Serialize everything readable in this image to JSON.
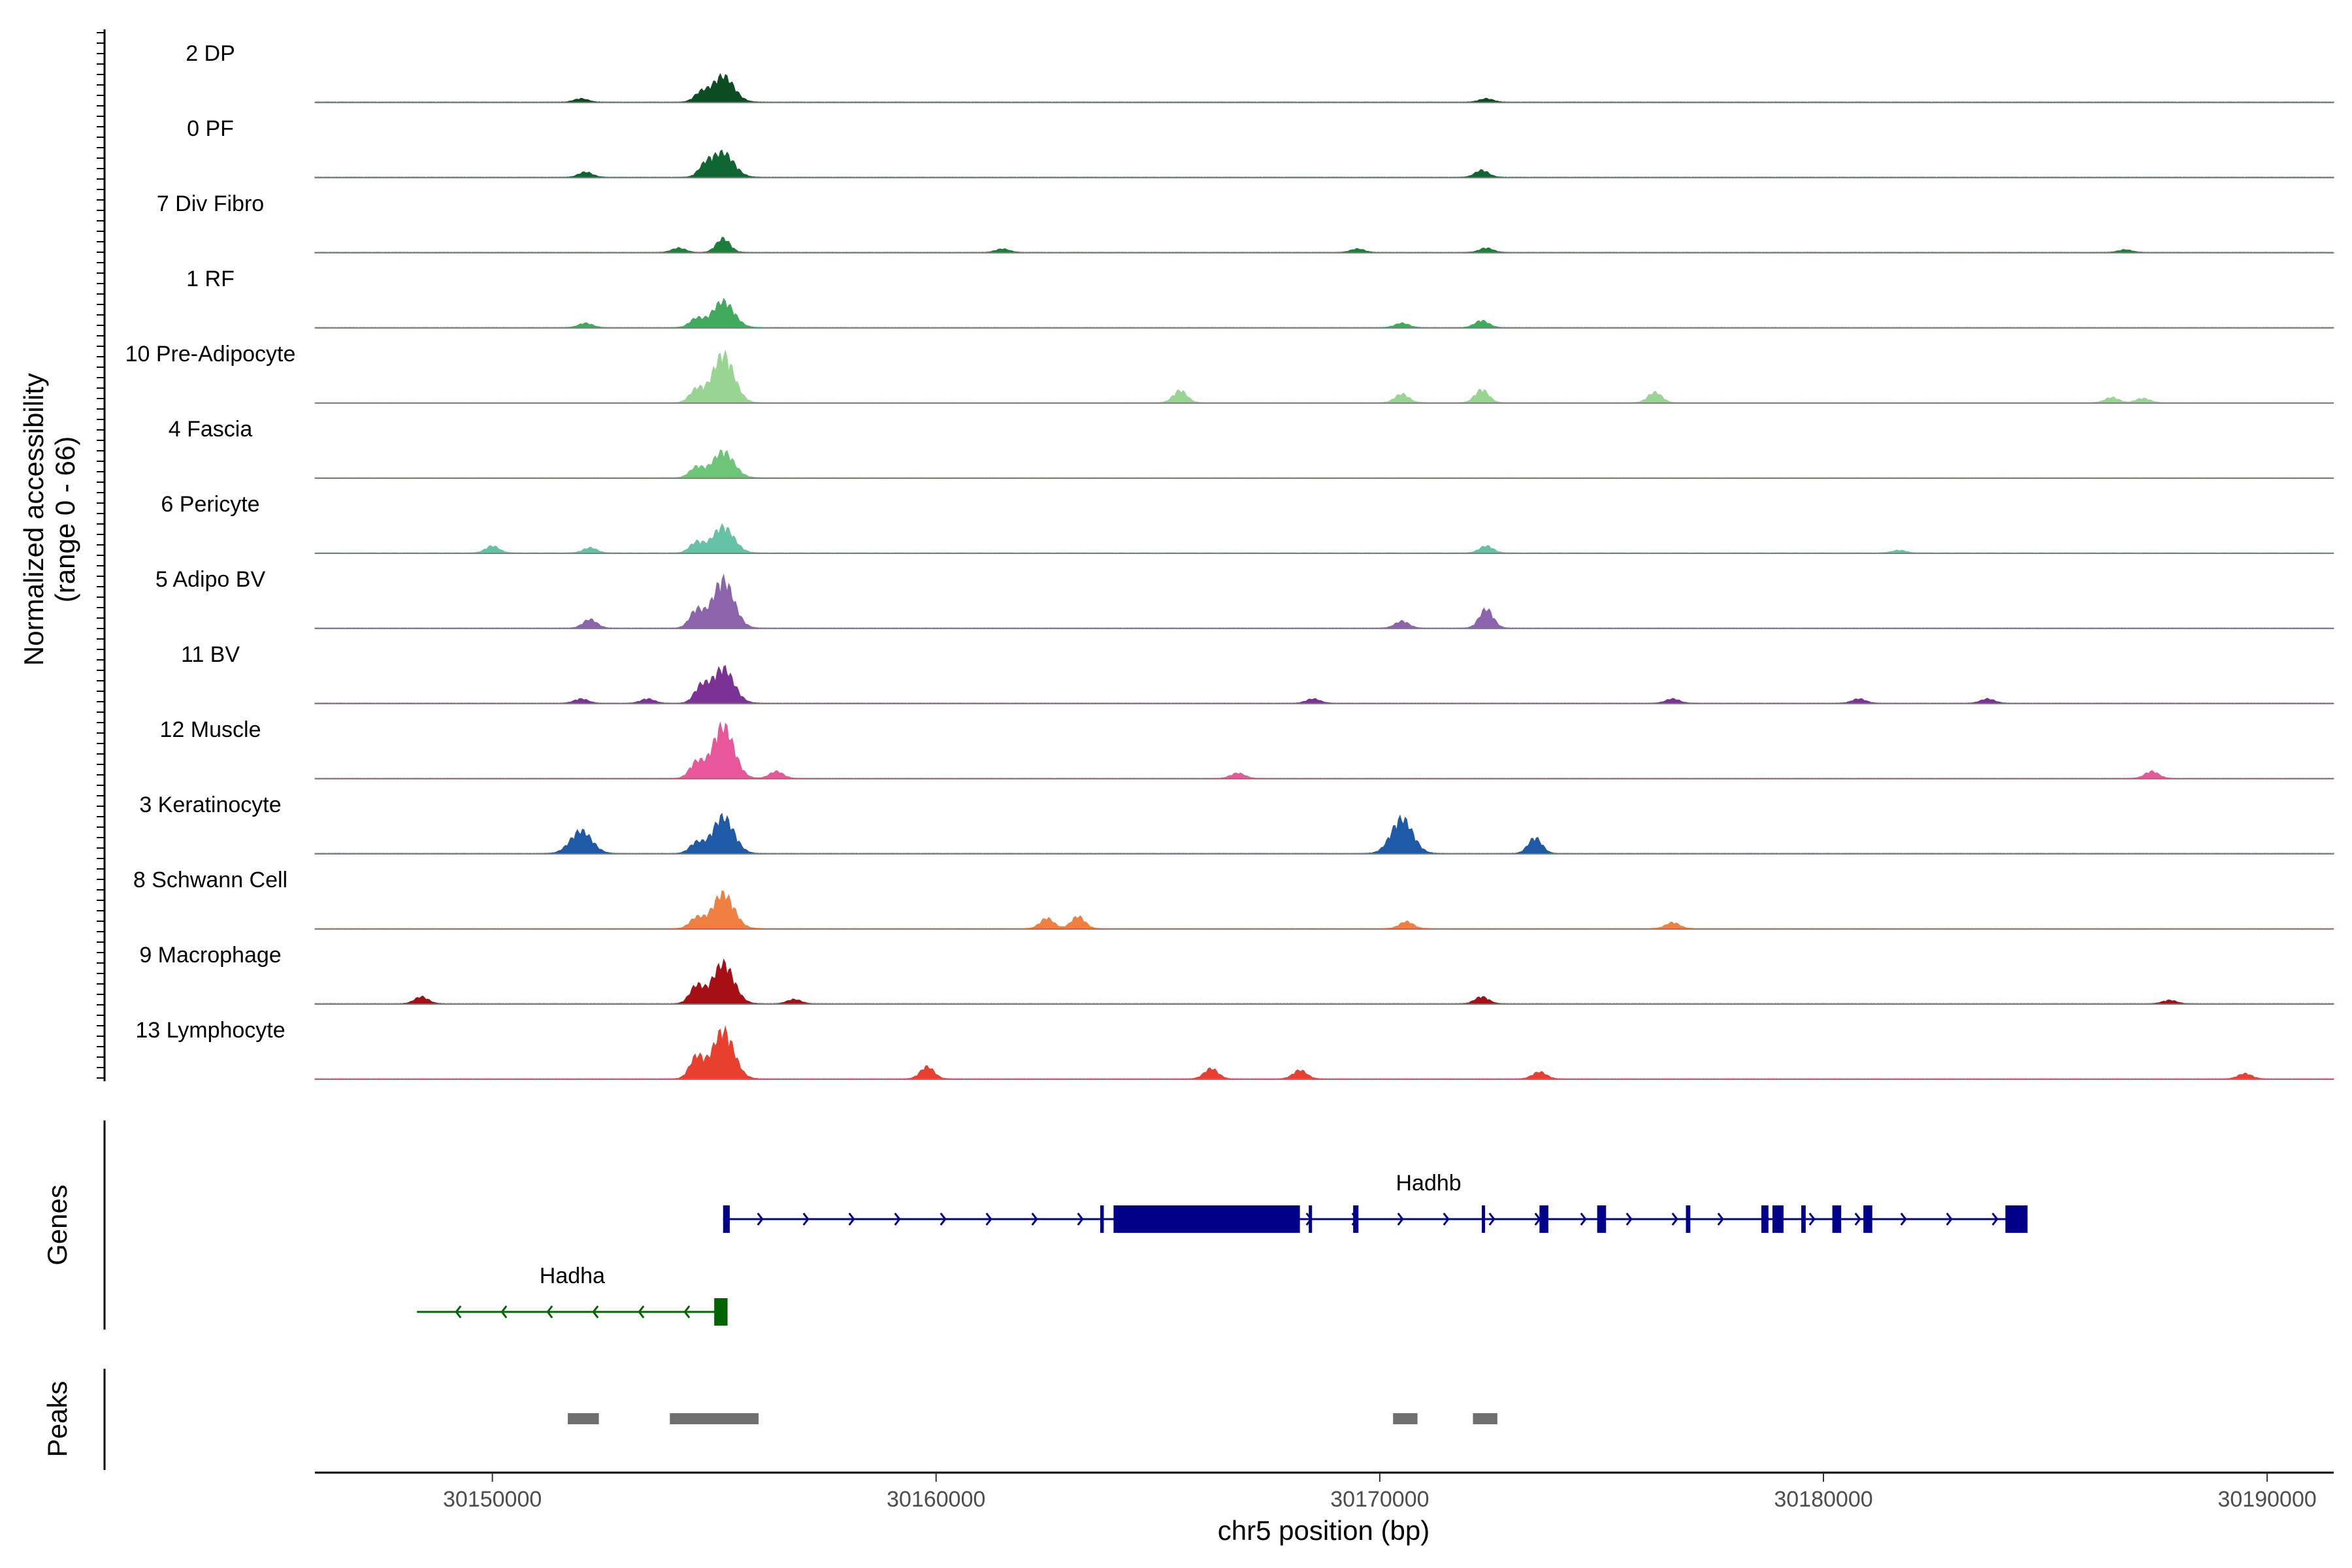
{
  "chart_data": {
    "type": "area",
    "title": "",
    "ylabel_line1": "Normalized accessibility",
    "ylabel_line2": "(range 0 - 66)",
    "yrange": [
      0,
      66
    ],
    "xlabel": "chr5 position (bp)",
    "xlim": [
      30146000,
      30191500
    ],
    "x_ticks": [
      30150000,
      30160000,
      30170000,
      30180000,
      30190000
    ],
    "x_tick_labels": [
      "30150000",
      "30160000",
      "30170000",
      "30180000",
      "30190000"
    ],
    "tracks": [
      {
        "label": "2 DP",
        "color": "#0b4d22",
        "peaks": [
          [
            30152000,
            4
          ],
          [
            30155200,
            30
          ],
          [
            30154700,
            10
          ],
          [
            30172400,
            4
          ]
        ]
      },
      {
        "label": "0 PF",
        "color": "#0f6630",
        "peaks": [
          [
            30152100,
            6
          ],
          [
            30155200,
            28
          ],
          [
            30154800,
            12
          ],
          [
            30172300,
            8
          ]
        ]
      },
      {
        "label": "7 Div Fibro",
        "color": "#1b7f3b",
        "peaks": [
          [
            30155200,
            16
          ],
          [
            30154200,
            5
          ],
          [
            30161500,
            4
          ],
          [
            30169500,
            4
          ],
          [
            30172400,
            5
          ],
          [
            30186800,
            3
          ]
        ]
      },
      {
        "label": "1 RF",
        "color": "#41ab5d",
        "peaks": [
          [
            30152100,
            5
          ],
          [
            30155200,
            30
          ],
          [
            30154600,
            10
          ],
          [
            30170500,
            5
          ],
          [
            30172300,
            8
          ]
        ]
      },
      {
        "label": "10 Pre-Adipocyte",
        "color": "#98d593",
        "peaks": [
          [
            30155200,
            55
          ],
          [
            30154600,
            15
          ],
          [
            30165500,
            14
          ],
          [
            30170500,
            10
          ],
          [
            30172300,
            15
          ],
          [
            30176200,
            12
          ],
          [
            30186500,
            6
          ],
          [
            30187200,
            5
          ]
        ]
      },
      {
        "label": "4 Fascia",
        "color": "#6dc578",
        "peaks": [
          [
            30155200,
            30
          ],
          [
            30154600,
            12
          ]
        ]
      },
      {
        "label": "6 Pericyte",
        "color": "#66c2a4",
        "peaks": [
          [
            30150000,
            8
          ],
          [
            30152200,
            6
          ],
          [
            30155200,
            30
          ],
          [
            30154600,
            12
          ],
          [
            30172400,
            8
          ],
          [
            30181700,
            3
          ]
        ]
      },
      {
        "label": "5 Adipo BV",
        "color": "#8c63ad",
        "peaks": [
          [
            30152200,
            10
          ],
          [
            30155200,
            55
          ],
          [
            30154600,
            20
          ],
          [
            30170500,
            8
          ],
          [
            30172400,
            22
          ]
        ]
      },
      {
        "label": "11 BV",
        "color": "#7b3294",
        "peaks": [
          [
            30152000,
            5
          ],
          [
            30155200,
            40
          ],
          [
            30154700,
            18
          ],
          [
            30153500,
            5
          ],
          [
            30168500,
            5
          ],
          [
            30176600,
            5
          ],
          [
            30180800,
            5
          ],
          [
            30183700,
            5
          ]
        ]
      },
      {
        "label": "12 Muscle",
        "color": "#e8579a",
        "peaks": [
          [
            30155200,
            60
          ],
          [
            30154600,
            18
          ],
          [
            30156400,
            8
          ],
          [
            30166800,
            6
          ],
          [
            30187400,
            8
          ]
        ]
      },
      {
        "label": "3 Keratinocyte",
        "color": "#1f5aa6",
        "peaks": [
          [
            30152000,
            26
          ],
          [
            30155200,
            42
          ],
          [
            30154600,
            12
          ],
          [
            30170500,
            40
          ],
          [
            30173500,
            18
          ]
        ]
      },
      {
        "label": "8 Schwann Cell",
        "color": "#f08040",
        "peaks": [
          [
            30155200,
            40
          ],
          [
            30154600,
            12
          ],
          [
            30162500,
            12
          ],
          [
            30163200,
            14
          ],
          [
            30170600,
            8
          ],
          [
            30176600,
            7
          ]
        ]
      },
      {
        "label": "9 Macrophage",
        "color": "#a50f15",
        "peaks": [
          [
            30148400,
            8
          ],
          [
            30155200,
            46
          ],
          [
            30154600,
            20
          ],
          [
            30156800,
            5
          ],
          [
            30172300,
            8
          ],
          [
            30187800,
            4
          ]
        ]
      },
      {
        "label": "13 Lymphocyte",
        "color": "#e8402e",
        "peaks": [
          [
            30155200,
            55
          ],
          [
            30154600,
            25
          ],
          [
            30159800,
            14
          ],
          [
            30166200,
            12
          ],
          [
            30168200,
            10
          ],
          [
            30173600,
            8
          ],
          [
            30189500,
            6
          ]
        ]
      }
    ],
    "genes_label": "Genes",
    "genes": [
      {
        "name": "Hadhb",
        "color": "#00008b",
        "strand": "+",
        "start": 30155200,
        "end": 30184600,
        "exons": [
          [
            30155200,
            30155350
          ],
          [
            30163700,
            30163780
          ],
          [
            30164000,
            30168200
          ],
          [
            30168400,
            30168460
          ],
          [
            30169400,
            30169520
          ],
          [
            30172300,
            30172360
          ],
          [
            30173600,
            30173800
          ],
          [
            30174900,
            30175100
          ],
          [
            30176900,
            30177000
          ],
          [
            30178600,
            30178760
          ],
          [
            30178850,
            30179100
          ],
          [
            30179500,
            30179600
          ],
          [
            30180200,
            30180400
          ],
          [
            30180900,
            30181100
          ],
          [
            30184100,
            30184600
          ]
        ]
      },
      {
        "name": "Hadha",
        "color": "#006400",
        "strand": "-",
        "start": 30148300,
        "end": 30155300,
        "exons": [
          [
            30155000,
            30155300
          ]
        ]
      }
    ],
    "peaks_label": "Peaks",
    "peak_regions": [
      [
        30151700,
        30152400
      ],
      [
        30154000,
        30156000
      ],
      [
        30170300,
        30170850
      ],
      [
        30172100,
        30172650
      ]
    ]
  }
}
